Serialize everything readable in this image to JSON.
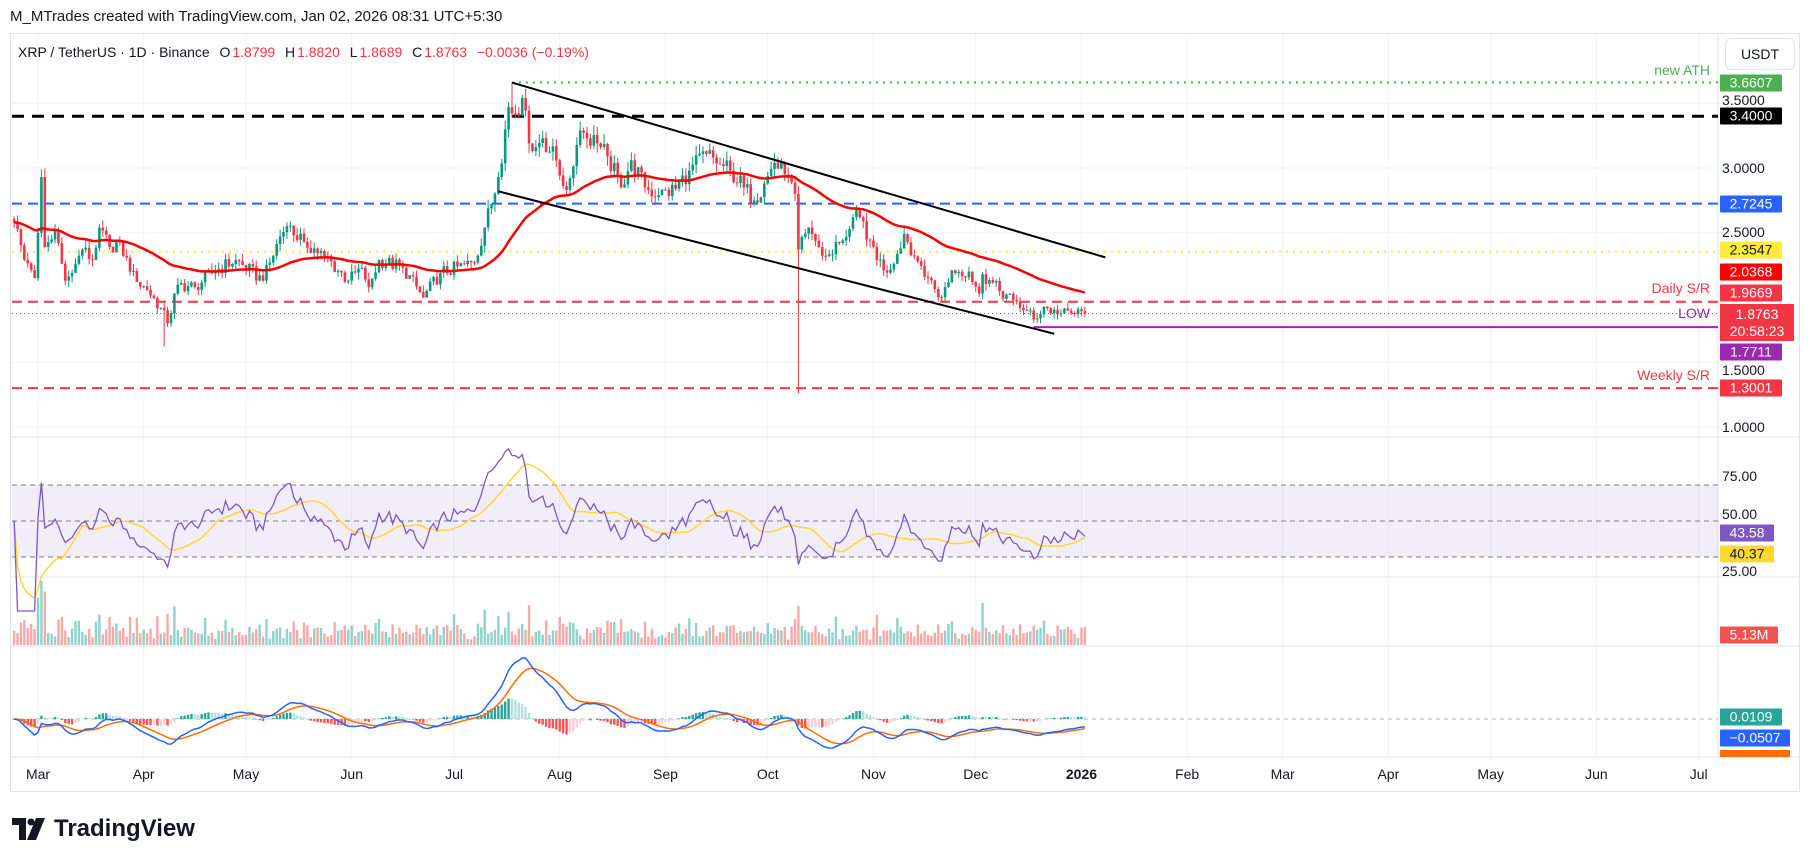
{
  "credit": "M_MTrades created with TradingView.com, Jan 02, 2026 08:31 UTC+5:30",
  "legend": {
    "symbol": "XRP / TetherUS · 1D · Binance",
    "open_label": "O",
    "open": "1.8799",
    "high_label": "H",
    "high": "1.8820",
    "low_label": "L",
    "low": "1.8689",
    "close_label": "C",
    "close": "1.8763",
    "change": "−0.0036 (−0.19%)"
  },
  "currency_button": "USDT",
  "logo_text": "TradingView",
  "colors": {
    "up": "#089981",
    "down": "#f23645",
    "ma": "#ff0000",
    "rsi": "#7e57c2",
    "rsi_ma": "#fdd835",
    "macd": "#2962ff",
    "signal": "#ff6d00"
  },
  "chart_data": {
    "type": "candlestick",
    "interval": "1D",
    "price_axis": {
      "ylim": [
        0.85,
        3.95
      ],
      "ticks": [
        "3.5000",
        "3.0000",
        "2.5000",
        "1.5000",
        "1.0000"
      ],
      "tick_values": [
        3.5,
        3.0,
        2.5,
        1.5,
        1.0
      ]
    },
    "x_axis": [
      {
        "label": "Mar",
        "date": "2025-03-01"
      },
      {
        "label": "Apr",
        "date": "2025-04-01"
      },
      {
        "label": "May",
        "date": "2025-05-01"
      },
      {
        "label": "Jun",
        "date": "2025-06-01"
      },
      {
        "label": "Jul",
        "date": "2025-07-01"
      },
      {
        "label": "Aug",
        "date": "2025-08-01"
      },
      {
        "label": "Sep",
        "date": "2025-09-01"
      },
      {
        "label": "Oct",
        "date": "2025-10-01"
      },
      {
        "label": "Nov",
        "date": "2025-11-01"
      },
      {
        "label": "Dec",
        "date": "2025-12-01"
      },
      {
        "label": "2026",
        "date": "2026-01-01",
        "bold": true
      },
      {
        "label": "Feb",
        "date": "2026-02-01"
      },
      {
        "label": "Mar",
        "date": "2026-03-01"
      },
      {
        "label": "Apr",
        "date": "2026-04-01"
      },
      {
        "label": "May",
        "date": "2026-05-01"
      },
      {
        "label": "Jun",
        "date": "2026-06-01"
      },
      {
        "label": "Jul",
        "date": "2026-07-01"
      }
    ],
    "close_keyframes": [
      [
        "2025-02-22",
        2.58
      ],
      [
        "2025-02-25",
        2.29
      ],
      [
        "2025-02-28",
        2.15
      ],
      [
        "2025-03-02",
        2.93
      ],
      [
        "2025-03-03",
        2.39
      ],
      [
        "2025-03-06",
        2.52
      ],
      [
        "2025-03-09",
        2.13
      ],
      [
        "2025-03-11",
        2.19
      ],
      [
        "2025-03-14",
        2.37
      ],
      [
        "2025-03-17",
        2.29
      ],
      [
        "2025-03-19",
        2.54
      ],
      [
        "2025-03-22",
        2.39
      ],
      [
        "2025-03-25",
        2.43
      ],
      [
        "2025-03-28",
        2.2
      ],
      [
        "2025-03-30",
        2.12
      ],
      [
        "2025-04-02",
        2.06
      ],
      [
        "2025-04-06",
        1.92
      ],
      [
        "2025-04-08",
        1.8
      ],
      [
        "2025-04-11",
        2.1
      ],
      [
        "2025-04-16",
        2.08
      ],
      [
        "2025-04-22",
        2.21
      ],
      [
        "2025-04-28",
        2.29
      ],
      [
        "2025-05-06",
        2.13
      ],
      [
        "2025-05-11",
        2.47
      ],
      [
        "2025-05-13",
        2.55
      ],
      [
        "2025-05-18",
        2.43
      ],
      [
        "2025-05-24",
        2.32
      ],
      [
        "2025-05-31",
        2.13
      ],
      [
        "2025-06-04",
        2.23
      ],
      [
        "2025-06-06",
        2.08
      ],
      [
        "2025-06-09",
        2.29
      ],
      [
        "2025-06-16",
        2.23
      ],
      [
        "2025-06-22",
        2.0
      ],
      [
        "2025-06-27",
        2.19
      ],
      [
        "2025-07-07",
        2.27
      ],
      [
        "2025-07-10",
        2.54
      ],
      [
        "2025-07-14",
        2.93
      ],
      [
        "2025-07-17",
        3.47
      ],
      [
        "2025-07-19",
        3.42
      ],
      [
        "2025-07-21",
        3.54
      ],
      [
        "2025-07-23",
        3.19
      ],
      [
        "2025-07-25",
        3.16
      ],
      [
        "2025-07-27",
        3.23
      ],
      [
        "2025-07-31",
        3.06
      ],
      [
        "2025-08-03",
        2.83
      ],
      [
        "2025-08-07",
        3.29
      ],
      [
        "2025-08-12",
        3.19
      ],
      [
        "2025-08-15",
        3.09
      ],
      [
        "2025-08-19",
        2.85
      ],
      [
        "2025-08-22",
        3.06
      ],
      [
        "2025-08-26",
        2.85
      ],
      [
        "2025-08-30",
        2.79
      ],
      [
        "2025-09-04",
        2.84
      ],
      [
        "2025-09-08",
        2.98
      ],
      [
        "2025-09-13",
        3.11
      ],
      [
        "2025-09-17",
        3.03
      ],
      [
        "2025-09-20",
        2.98
      ],
      [
        "2025-09-24",
        2.85
      ],
      [
        "2025-09-27",
        2.75
      ],
      [
        "2025-09-30",
        2.88
      ],
      [
        "2025-10-03",
        3.04
      ],
      [
        "2025-10-06",
        2.95
      ],
      [
        "2025-10-09",
        2.8
      ],
      [
        "2025-10-10",
        2.37
      ],
      [
        "2025-10-13",
        2.54
      ],
      [
        "2025-10-16",
        2.39
      ],
      [
        "2025-10-18",
        2.32
      ],
      [
        "2025-10-23",
        2.44
      ],
      [
        "2025-10-26",
        2.62
      ],
      [
        "2025-10-28",
        2.62
      ],
      [
        "2025-10-31",
        2.44
      ],
      [
        "2025-11-04",
        2.21
      ],
      [
        "2025-11-07",
        2.26
      ],
      [
        "2025-11-10",
        2.49
      ],
      [
        "2025-11-14",
        2.28
      ],
      [
        "2025-11-17",
        2.15
      ],
      [
        "2025-11-21",
        2.0
      ],
      [
        "2025-11-24",
        2.21
      ],
      [
        "2025-11-29",
        2.2
      ],
      [
        "2025-12-02",
        2.03
      ],
      [
        "2025-12-03",
        2.18
      ],
      [
        "2025-12-08",
        2.05
      ],
      [
        "2025-12-12",
        1.98
      ],
      [
        "2025-12-16",
        1.9
      ],
      [
        "2025-12-18",
        1.83
      ],
      [
        "2025-12-21",
        1.93
      ],
      [
        "2025-12-25",
        1.87
      ],
      [
        "2025-12-29",
        1.88
      ],
      [
        "2026-01-02",
        1.8763
      ]
    ],
    "notable_wicks": [
      {
        "date": "2025-03-02",
        "high": 2.99
      },
      {
        "date": "2025-04-07",
        "low": 1.62
      },
      {
        "date": "2025-07-18",
        "high": 3.6607
      },
      {
        "date": "2025-10-10",
        "low": 1.26
      }
    ],
    "moving_average_period": 50,
    "trendlines": [
      {
        "name": "channel-upper",
        "from": [
          "2025-07-18",
          3.66
        ],
        "to": [
          "2026-01-08",
          2.31
        ]
      },
      {
        "name": "channel-lower",
        "from": [
          "2025-07-14",
          2.82
        ],
        "to": [
          "2025-12-24",
          1.72
        ]
      }
    ],
    "levels": [
      {
        "value": 3.6607,
        "label": "3.6607",
        "color": "#4caf50",
        "style": "dotted",
        "from": "2025-07-18",
        "annotation": "new ATH"
      },
      {
        "value": 3.4,
        "label": "3.4000",
        "color": "#000000",
        "style": "dashed-bold"
      },
      {
        "value": 2.7245,
        "label": "2.7245",
        "color": "#2962ff",
        "style": "dashed"
      },
      {
        "value": 2.3547,
        "label": "2.3547",
        "color": "#ffeb3b",
        "style": "dotted",
        "dark_text": true
      },
      {
        "value": 1.9669,
        "label": "1.9669",
        "color": "#f23645",
        "style": "dashed",
        "annotation": "Daily S/R"
      },
      {
        "value": 1.8763,
        "label": "1.8763",
        "color": "#f23645",
        "style": "thin-dotted",
        "countdown": "20:58:23"
      },
      {
        "value": 1.7711,
        "label": "1.7711",
        "color": "#9c27b0",
        "style": "solid",
        "from": "2025-12-18",
        "annotation": "LOW"
      },
      {
        "value": 1.3001,
        "label": "1.3001",
        "color": "#f23645",
        "style": "dashed",
        "annotation": "Weekly S/R"
      }
    ],
    "ma_value_label": "2.0368",
    "rsi": {
      "period": 14,
      "value": "43.58",
      "ma_value": "40.37",
      "ticks": [
        "75.00",
        "50.00",
        "25.00"
      ],
      "band": [
        30,
        70
      ]
    },
    "volume": {
      "value": "5.13M"
    },
    "macd": {
      "fast": 12,
      "slow": 26,
      "signal": 9,
      "histogram": "0.0109",
      "macd": "−0.0507"
    }
  }
}
